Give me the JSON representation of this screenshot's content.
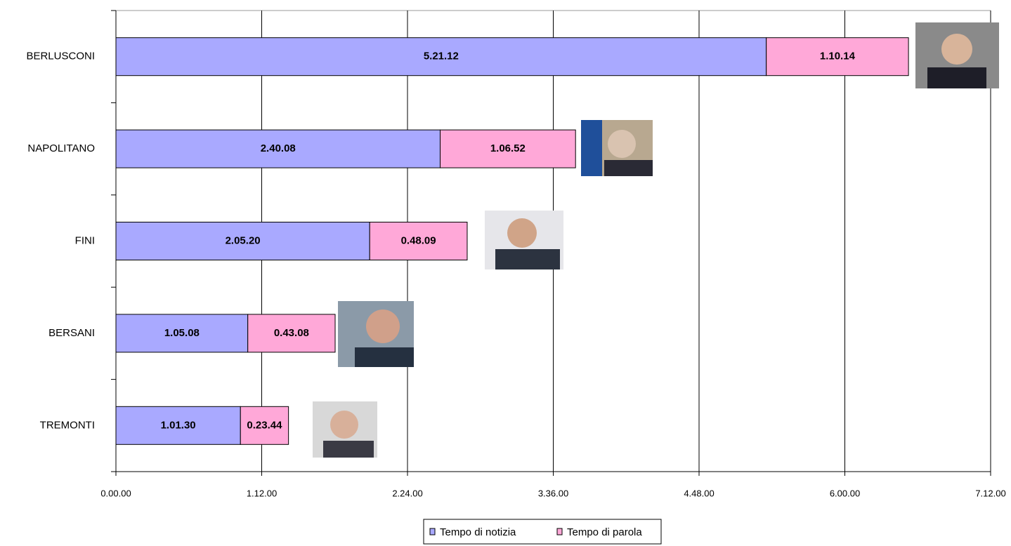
{
  "chart_data": {
    "type": "stacked-bar-horizontal",
    "categories": [
      "BERLUSCONI",
      "NAPOLITANO",
      "FINI",
      "BERSANI",
      "TREMONTI"
    ],
    "series": [
      {
        "name": "Tempo di notizia",
        "color": "#a9a9ff",
        "values": [
          19272,
          9608,
          7520,
          3908,
          3690
        ],
        "value_labels": [
          "5.21.12",
          "2.40.08",
          "2.05.20",
          "1.05.08",
          "1.01.30"
        ]
      },
      {
        "name": "Tempo di parola",
        "color": "#ffa8d8",
        "values": [
          4214,
          4012,
          2889,
          2588,
          1424
        ],
        "value_labels": [
          "1.10.14",
          "1.06.52",
          "0.48.09",
          "0.43.08",
          "0.23.44"
        ]
      }
    ],
    "xlim": [
      0,
      25920
    ],
    "xticks": [
      {
        "value": 0,
        "label": "0.00.00"
      },
      {
        "value": 4320,
        "label": "1.12.00"
      },
      {
        "value": 8640,
        "label": "2.24.00"
      },
      {
        "value": 12960,
        "label": "3.36.00"
      },
      {
        "value": 17280,
        "label": "4.48.00"
      },
      {
        "value": 21600,
        "label": "6.00.00"
      },
      {
        "value": 25920,
        "label": "7.12.00"
      }
    ],
    "grid": true,
    "legend": "bottom"
  }
}
